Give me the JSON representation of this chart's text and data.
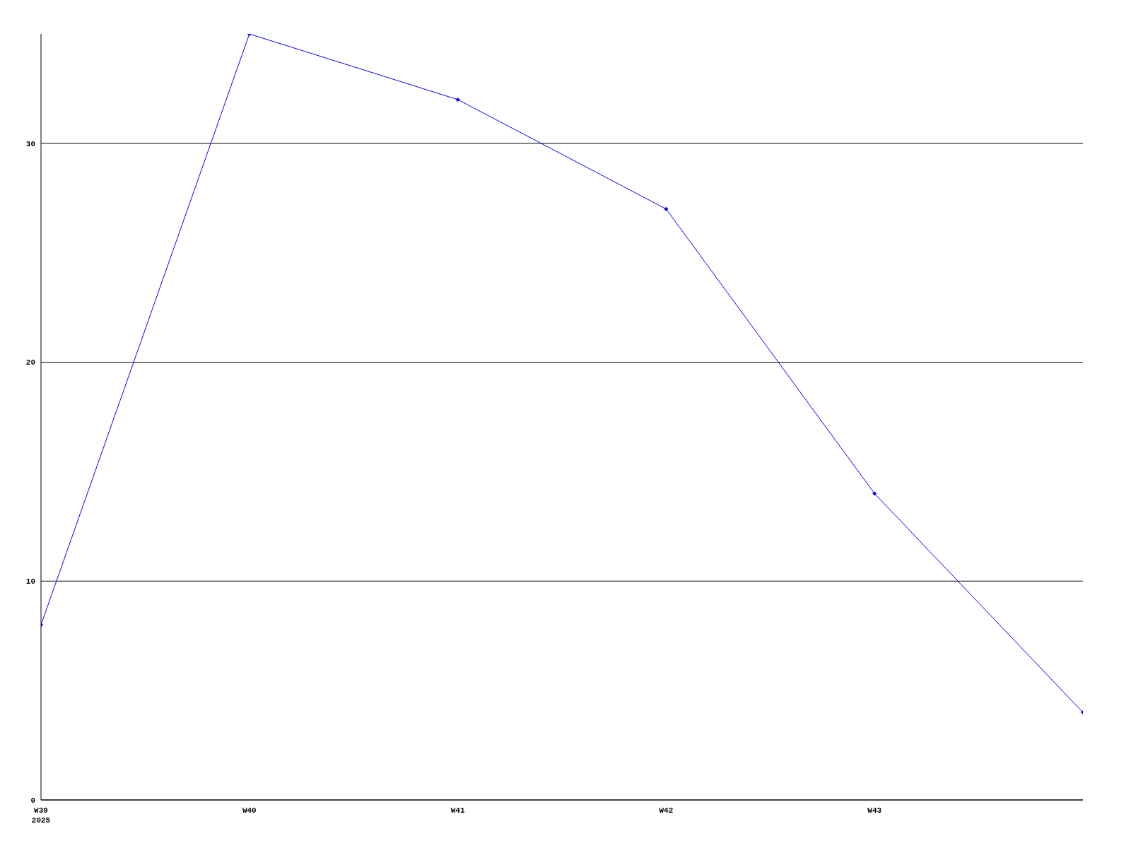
{
  "chart_data": {
    "type": "line",
    "categories": [
      "W39\n2025",
      "W40",
      "W41",
      "W42",
      "W43",
      null
    ],
    "series": [
      {
        "color": "#0000ff",
        "values": [
          8,
          35,
          32,
          27,
          14,
          4
        ]
      }
    ],
    "ylim": [
      0,
      35
    ],
    "yticks": [
      0,
      10,
      20,
      30
    ],
    "grid": "y",
    "legend": false,
    "marker": "diamond",
    "line_style": "solid"
  }
}
